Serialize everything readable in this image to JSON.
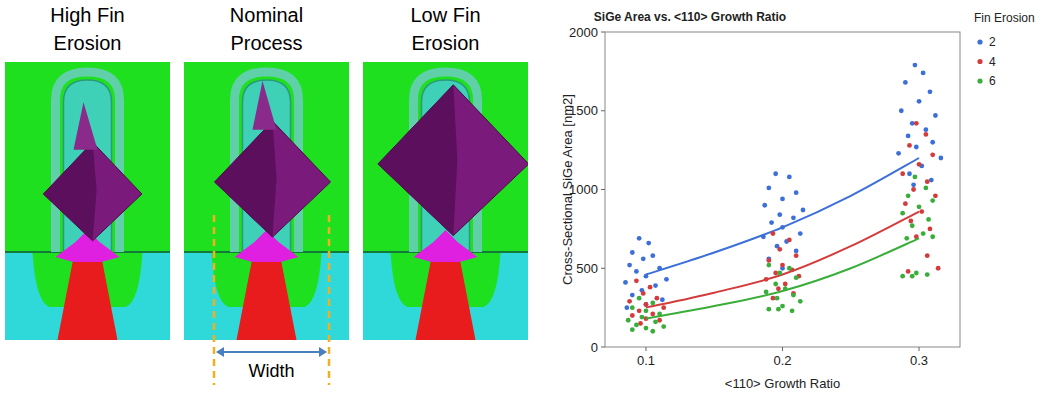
{
  "panels": [
    {
      "title": [
        "High Fin",
        "Erosion"
      ]
    },
    {
      "title": [
        "Nominal",
        "Process"
      ],
      "dimension_label": "Width"
    },
    {
      "title": [
        "Low Fin",
        "Erosion"
      ]
    }
  ],
  "chart_data": {
    "type": "scatter",
    "title": "SiGe Area vs. <110> Growth Ratio",
    "x_label": "<110> Growth Ratio",
    "y_label": "Cross-Sectional SiGe Area [nm2]",
    "legend_title": "Fin Erosion",
    "legend": "right",
    "grid": false,
    "xlim": [
      0.07,
      0.33
    ],
    "xticks": [
      0.1,
      0.2,
      0.3
    ],
    "ylim": [
      0,
      2000
    ],
    "yticks": [
      0,
      500,
      1000,
      1500,
      2000
    ],
    "series": [
      {
        "name": "2",
        "color": "#3d6fd8",
        "marker": "circle",
        "x": [
          0.095,
          0.102,
          0.09,
          0.105,
          0.098,
          0.088,
          0.11,
          0.093,
          0.1,
          0.115,
          0.085,
          0.107,
          0.097,
          0.09,
          0.112,
          0.1,
          0.086,
          0.195,
          0.205,
          0.19,
          0.21,
          0.2,
          0.187,
          0.215,
          0.198,
          0.208,
          0.192,
          0.2,
          0.213,
          0.186,
          0.203,
          0.196,
          0.21,
          0.19,
          0.2,
          0.297,
          0.303,
          0.29,
          0.308,
          0.3,
          0.287,
          0.312,
          0.295,
          0.305,
          0.292,
          0.31,
          0.298,
          0.285,
          0.316,
          0.302,
          0.293,
          0.309,
          0.296
        ],
        "values": [
          690,
          660,
          600,
          580,
          560,
          520,
          500,
          480,
          450,
          430,
          410,
          390,
          360,
          330,
          300,
          270,
          250,
          1100,
          1080,
          1010,
          980,
          940,
          900,
          870,
          840,
          820,
          790,
          760,
          720,
          700,
          670,
          640,
          610,
          560,
          500,
          1790,
          1740,
          1680,
          1620,
          1560,
          1500,
          1470,
          1420,
          1380,
          1340,
          1300,
          1270,
          1230,
          1200,
          1150,
          1100,
          1060,
          1030
        ],
        "fit": {
          "x": [
            0.1,
            0.15,
            0.2,
            0.25,
            0.3
          ],
          "values": [
            460,
            600,
            760,
            960,
            1200
          ]
        }
      },
      {
        "name": "4",
        "color": "#d43c3c",
        "marker": "circle",
        "x": [
          0.093,
          0.103,
          0.098,
          0.108,
          0.088,
          0.1,
          0.113,
          0.095,
          0.105,
          0.09,
          0.1,
          0.11,
          0.096,
          0.193,
          0.205,
          0.198,
          0.21,
          0.19,
          0.2,
          0.207,
          0.195,
          0.212,
          0.188,
          0.202,
          0.197,
          0.208,
          0.193,
          0.298,
          0.305,
          0.293,
          0.31,
          0.3,
          0.288,
          0.306,
          0.296,
          0.312,
          0.29,
          0.302,
          0.294,
          0.308,
          0.298,
          0.306,
          0.314,
          0.292
        ],
        "values": [
          420,
          380,
          340,
          310,
          290,
          270,
          250,
          230,
          210,
          200,
          180,
          170,
          150,
          720,
          680,
          620,
          580,
          550,
          520,
          490,
          470,
          450,
          430,
          400,
          370,
          340,
          310,
          1420,
          1350,
          1280,
          1220,
          1160,
          1100,
          1050,
          1000,
          960,
          910,
          860,
          800,
          750,
          700,
          580,
          500,
          480
        ],
        "fit": {
          "x": [
            0.1,
            0.15,
            0.2,
            0.25,
            0.3
          ],
          "values": [
            250,
            345,
            460,
            640,
            860
          ]
        }
      },
      {
        "name": "6",
        "color": "#3aae3a",
        "marker": "circle",
        "x": [
          0.095,
          0.105,
          0.09,
          0.1,
          0.11,
          0.097,
          0.087,
          0.107,
          0.093,
          0.113,
          0.1,
          0.09,
          0.105,
          0.19,
          0.205,
          0.198,
          0.21,
          0.195,
          0.202,
          0.188,
          0.208,
          0.196,
          0.213,
          0.2,
          0.19,
          0.207,
          0.197,
          0.297,
          0.305,
          0.292,
          0.31,
          0.3,
          0.288,
          0.307,
          0.295,
          0.303,
          0.291,
          0.31,
          0.298,
          0.288,
          0.306,
          0.295
        ],
        "values": [
          310,
          280,
          250,
          230,
          210,
          190,
          170,
          160,
          140,
          130,
          120,
          110,
          100,
          520,
          500,
          470,
          440,
          400,
          370,
          350,
          330,
          310,
          290,
          260,
          240,
          230,
          240,
          1080,
          1010,
          960,
          930,
          890,
          850,
          810,
          770,
          720,
          690,
          700,
          470,
          450,
          460,
          450
        ],
        "fit": {
          "x": [
            0.1,
            0.15,
            0.2,
            0.25,
            0.3
          ],
          "values": [
            180,
            260,
            355,
            500,
            690
          ]
        }
      }
    ]
  }
}
